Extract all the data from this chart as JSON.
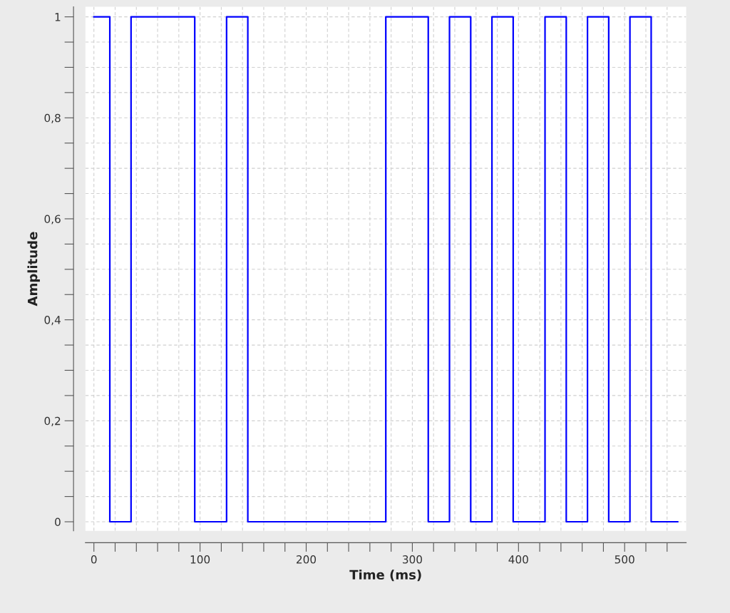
{
  "chart_data": {
    "type": "step",
    "xlabel": "Time (ms)",
    "ylabel": "Amplitude",
    "x": [
      0,
      15,
      35,
      95,
      125,
      145,
      275,
      315,
      335,
      355,
      375,
      395,
      425,
      445,
      465,
      485,
      505,
      525,
      550
    ],
    "series": [
      {
        "color": "#0000ff",
        "values": [
          1,
          0,
          1,
          0,
          1,
          0,
          1,
          0,
          1,
          0,
          1,
          0,
          1,
          0,
          1,
          0,
          1,
          0,
          0
        ]
      }
    ],
    "xlim": [
      -8,
      558
    ],
    "ylim": [
      -0.018,
      1.02
    ],
    "xticks": [
      0,
      {
        "value": 20,
        "label": null
      },
      {
        "value": 40,
        "label": null
      },
      {
        "value": 60,
        "label": null
      },
      {
        "value": 80,
        "label": null
      },
      100,
      {
        "value": 120,
        "label": null
      },
      {
        "value": 140,
        "label": null
      },
      {
        "value": 160,
        "label": null
      },
      {
        "value": 180,
        "label": null
      },
      200,
      {
        "value": 220,
        "label": null
      },
      {
        "value": 240,
        "label": null
      },
      {
        "value": 260,
        "label": null
      },
      {
        "value": 280,
        "label": null
      },
      300,
      {
        "value": 320,
        "label": null
      },
      {
        "value": 340,
        "label": null
      },
      {
        "value": 360,
        "label": null
      },
      {
        "value": 380,
        "label": null
      },
      400,
      {
        "value": 420,
        "label": null
      },
      {
        "value": 440,
        "label": null
      },
      {
        "value": 460,
        "label": null
      },
      {
        "value": 480,
        "label": null
      },
      500,
      {
        "value": 520,
        "label": null
      },
      {
        "value": 540,
        "label": null
      }
    ],
    "yticks": [
      0,
      {
        "value": 0.05,
        "label": null
      },
      {
        "value": 0.1,
        "label": null
      },
      {
        "value": 0.15,
        "label": null
      },
      {
        "value": 0.2,
        "label": "0,2"
      },
      {
        "value": 0.25,
        "label": null
      },
      {
        "value": 0.3,
        "label": null
      },
      {
        "value": 0.35,
        "label": null
      },
      {
        "value": 0.4,
        "label": "0,4"
      },
      {
        "value": 0.45,
        "label": null
      },
      {
        "value": 0.5,
        "label": null
      },
      {
        "value": 0.55,
        "label": null
      },
      {
        "value": 0.6,
        "label": "0,6"
      },
      {
        "value": 0.65,
        "label": null
      },
      {
        "value": 0.7,
        "label": null
      },
      {
        "value": 0.75,
        "label": null
      },
      {
        "value": 0.8,
        "label": "0,8"
      },
      {
        "value": 0.85,
        "label": null
      },
      {
        "value": 0.9,
        "label": null
      },
      {
        "value": 0.95,
        "label": null
      },
      1
    ],
    "grid": true,
    "line_style": "solid",
    "marker": "none"
  }
}
